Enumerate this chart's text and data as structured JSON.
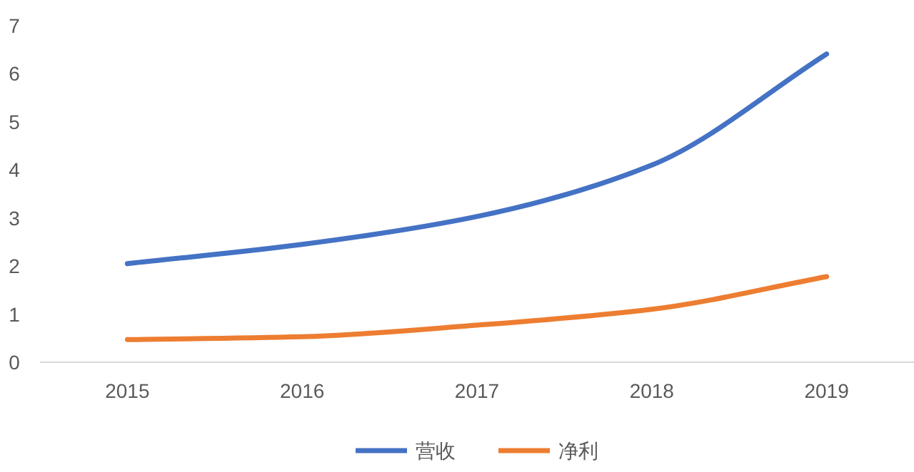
{
  "chart_data": {
    "type": "line",
    "categories": [
      "2015",
      "2016",
      "2017",
      "2018",
      "2019"
    ],
    "series": [
      {
        "name": "营收",
        "color": "#4472c4",
        "values": [
          2.05,
          2.45,
          3.03,
          4.1,
          6.41
        ]
      },
      {
        "name": "净利",
        "color": "#ed7d31",
        "values": [
          0.47,
          0.53,
          0.77,
          1.1,
          1.78
        ]
      }
    ],
    "ylim": [
      0,
      7
    ],
    "yticks": [
      0,
      1,
      2,
      3,
      4,
      5,
      6,
      7
    ],
    "legend": "bottom"
  }
}
